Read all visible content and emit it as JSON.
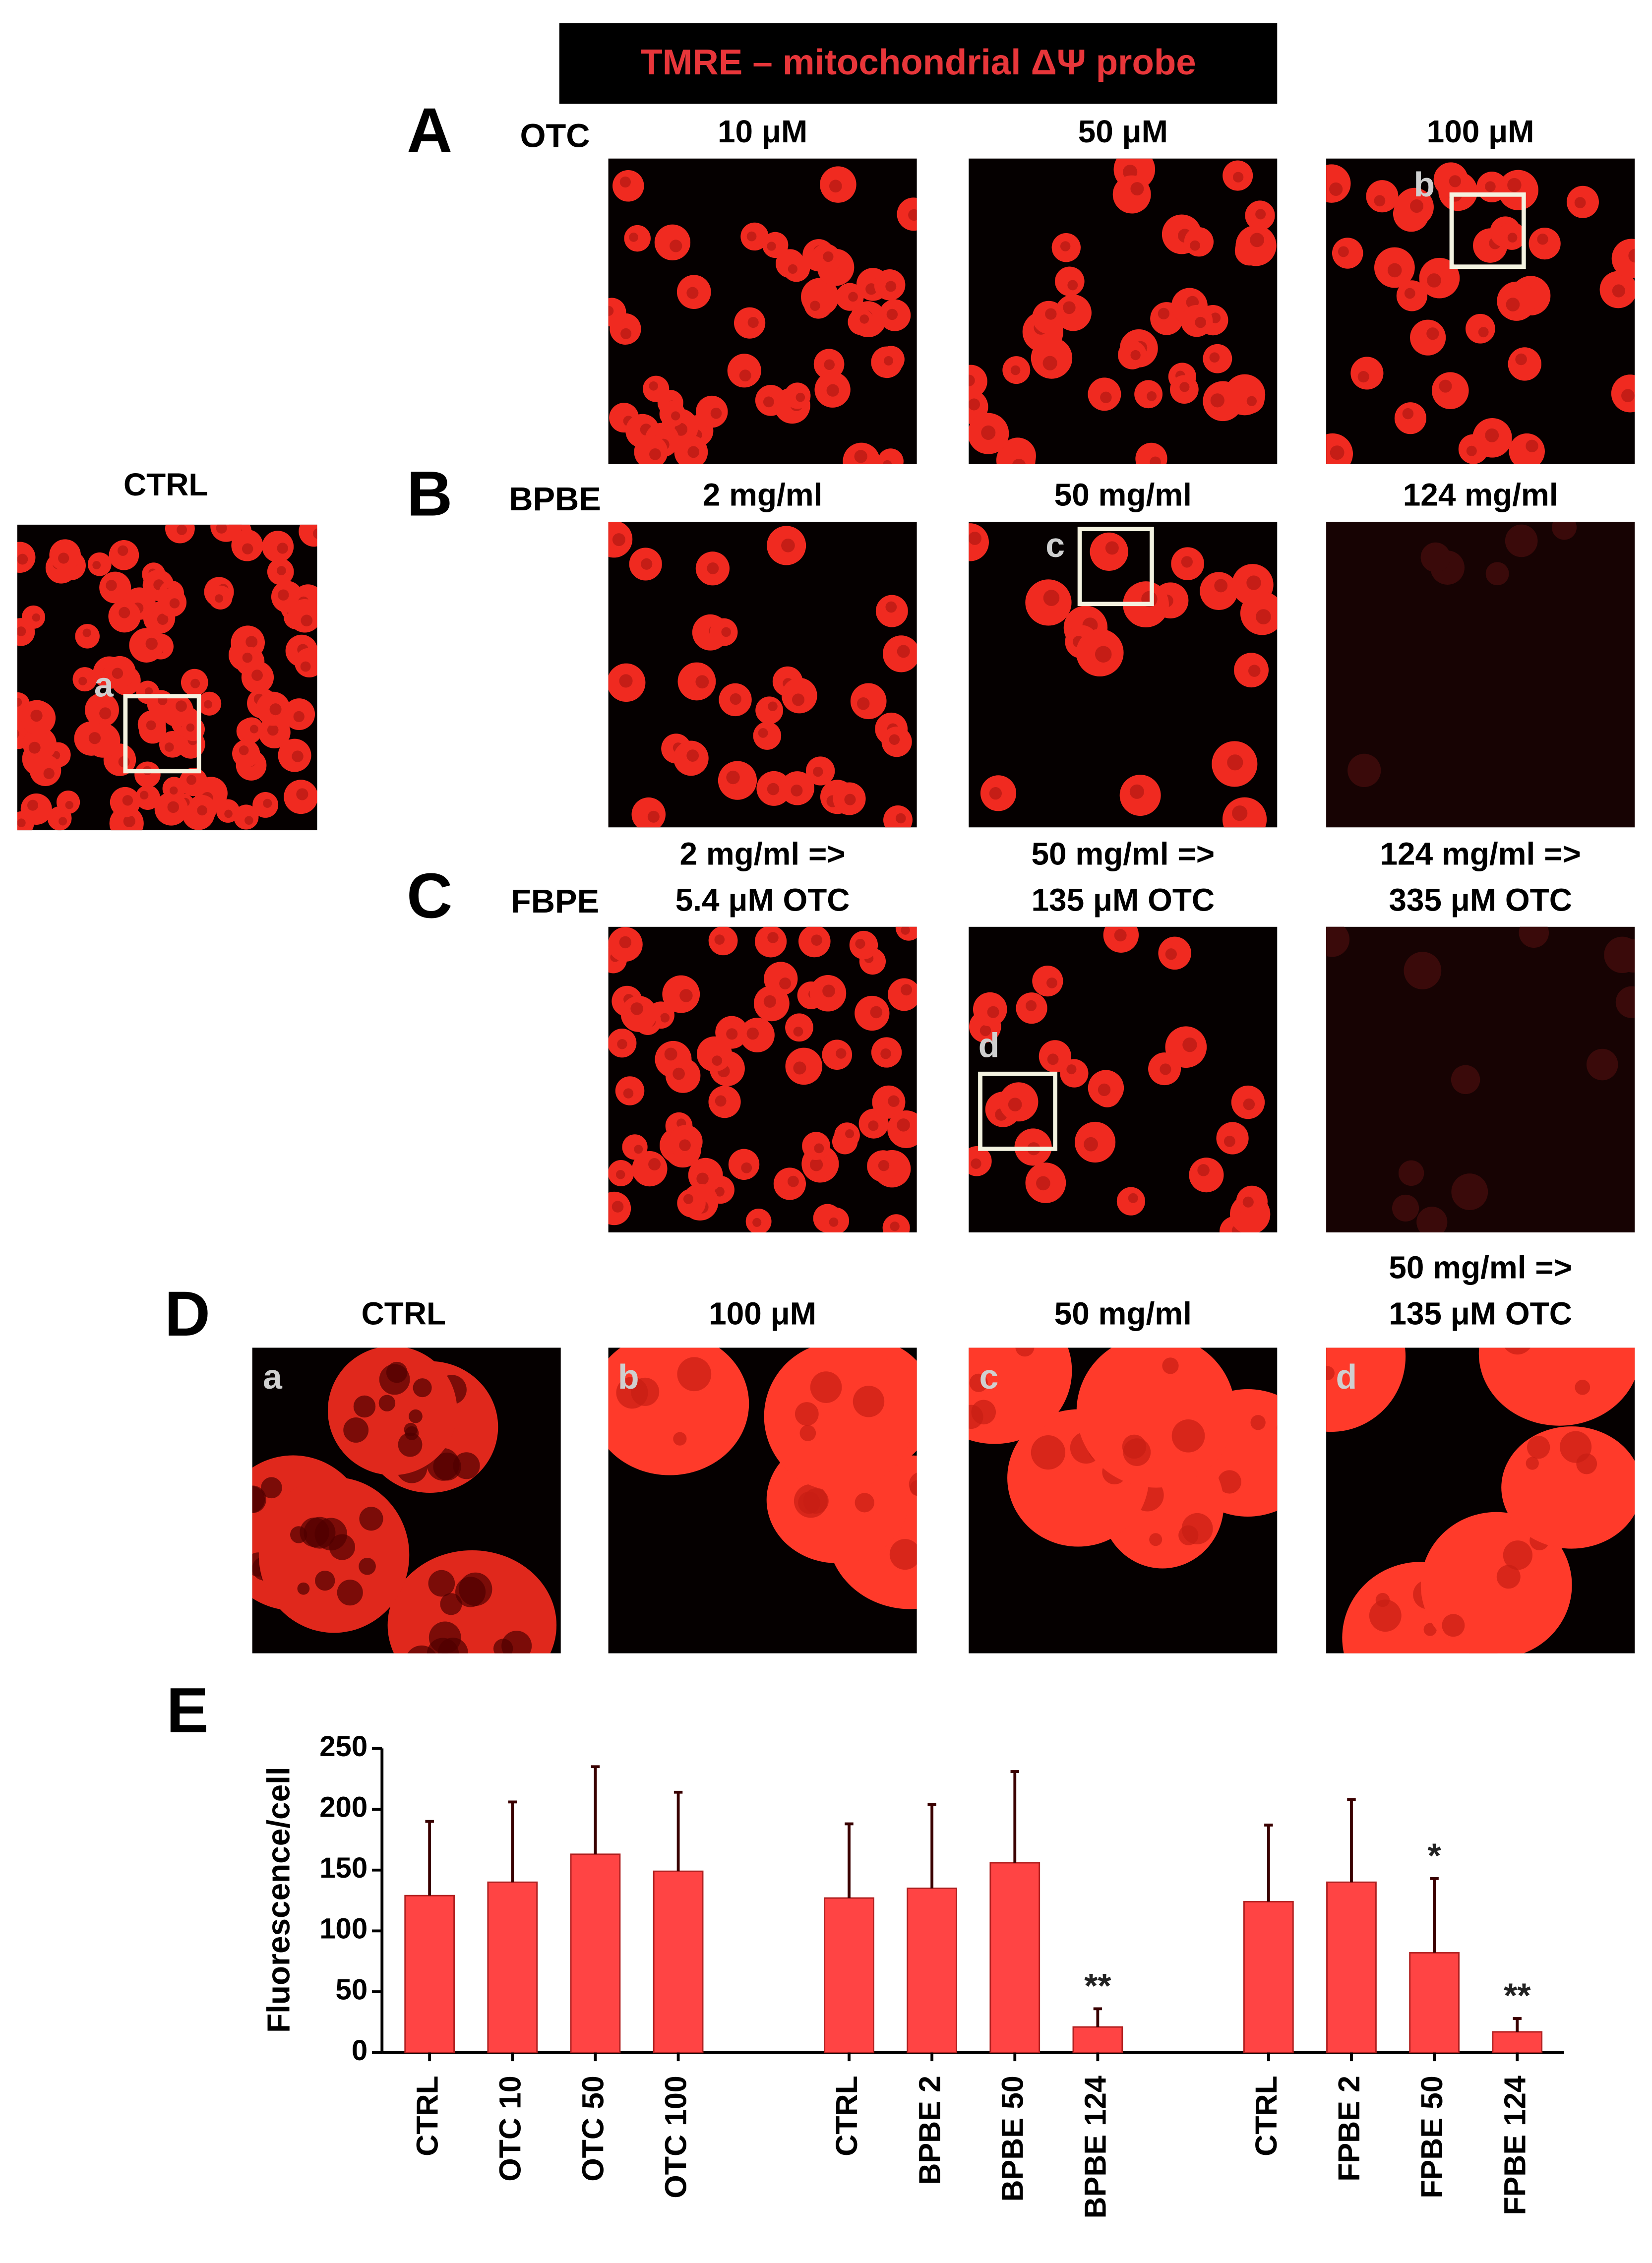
{
  "figure": {
    "probe_title": "TMRE – mitochondrial ΔΨ probe",
    "ctrl": {
      "label": "CTRL",
      "inset": "a"
    },
    "rows": [
      {
        "letter": "A",
        "treatment": "OTC",
        "columns": [
          {
            "header": [
              "10 μM"
            ]
          },
          {
            "header": [
              "50 μM"
            ]
          },
          {
            "header": [
              "100 μM"
            ],
            "inset": "b"
          }
        ]
      },
      {
        "letter": "B",
        "treatment": "BPBE",
        "columns": [
          {
            "header": [
              "2 mg/ml"
            ]
          },
          {
            "header": [
              "50 mg/ml"
            ],
            "inset": "c"
          },
          {
            "header": [
              "124 mg/ml"
            ]
          }
        ]
      },
      {
        "letter": "C",
        "treatment": "FBPE",
        "columns": [
          {
            "header": [
              "2 mg/ml =>",
              "5.4 μM OTC"
            ]
          },
          {
            "header": [
              "50 mg/ml =>",
              "135 μM OTC"
            ],
            "inset": "d"
          },
          {
            "header": [
              "124 mg/ml =>",
              "335 μM OTC"
            ]
          }
        ]
      }
    ],
    "zoom": {
      "letter": "D",
      "columns": [
        {
          "header": [
            "CTRL"
          ],
          "inset": "a"
        },
        {
          "header": [
            "100 μM"
          ],
          "inset": "b"
        },
        {
          "header": [
            "50 mg/ml"
          ],
          "inset": "c"
        },
        {
          "header": [
            "50 mg/ml =>",
            "135 μM OTC"
          ],
          "inset": "d"
        }
      ]
    }
  },
  "chart_data": {
    "type": "bar",
    "label": "E",
    "y_label": "Fluorescence/cell",
    "categories": [
      "CTRL",
      "OTC 10",
      "OTC 50",
      "OTC 100",
      "CTRL",
      "BPBE 2",
      "BPBE 50",
      "BPBE 124",
      "CTRL",
      "FPBE 2",
      "FPBE 50",
      "FPBE 124"
    ],
    "values": [
      129,
      140,
      163,
      149,
      127,
      135,
      156,
      21,
      124,
      140,
      82,
      17
    ],
    "errors": [
      61,
      66,
      72,
      65,
      61,
      69,
      75,
      15,
      63,
      68,
      61,
      11
    ],
    "significance": [
      null,
      null,
      null,
      null,
      null,
      null,
      null,
      "**",
      null,
      null,
      "*",
      "**"
    ],
    "color": "#ff4444",
    "ylim": [
      0,
      250
    ],
    "yticks": [
      0,
      50,
      100,
      150,
      200,
      250
    ]
  }
}
